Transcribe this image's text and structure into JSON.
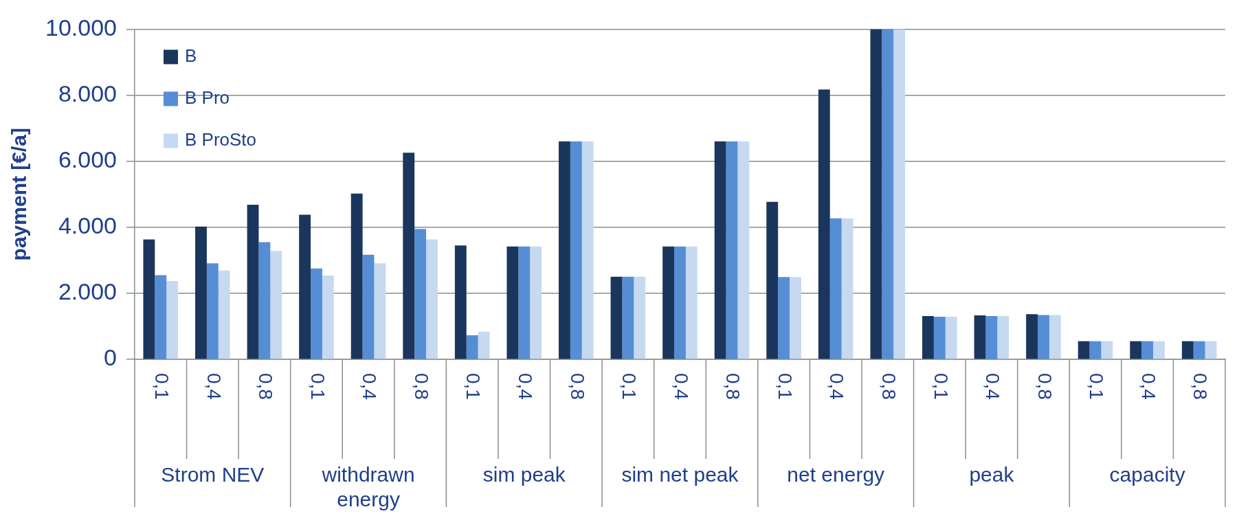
{
  "chart_data": {
    "type": "bar",
    "ylabel": "payment [€/a]",
    "categories": [
      "0,1",
      "0,4",
      "0,8",
      "0,1",
      "0,4",
      "0,8",
      "0,1",
      "0,4",
      "0,8",
      "0,1",
      "0,4",
      "0,8",
      "0,1",
      "0,4",
      "0,8",
      "0,1",
      "0,4",
      "0,8",
      "0,1",
      "0,4",
      "0,8"
    ],
    "annotations": [
      "Strom NEV",
      "withdrawn energy",
      "sim peak",
      "sim net peak",
      "net energy",
      "peak",
      "capacity"
    ],
    "series": [
      {
        "name": "B",
        "color": "#1b365d",
        "values": [
          3630,
          4020,
          4680,
          4380,
          5020,
          6260,
          3450,
          3420,
          6600,
          2500,
          3420,
          6600,
          4770,
          8170,
          10000,
          1310,
          1330,
          1370,
          550,
          550,
          550
        ]
      },
      {
        "name": "B Pro",
        "color": "#558ed5",
        "values": [
          2550,
          2910,
          3550,
          2750,
          3170,
          3950,
          730,
          3420,
          6600,
          2500,
          3420,
          6600,
          2490,
          4270,
          10000,
          1290,
          1310,
          1340,
          550,
          550,
          550
        ]
      },
      {
        "name": "B ProSto",
        "color": "#c6d9f1",
        "values": [
          2370,
          2690,
          3280,
          2540,
          2910,
          3630,
          840,
          3420,
          6600,
          2500,
          3420,
          6600,
          2490,
          4270,
          10000,
          1290,
          1310,
          1340,
          550,
          550,
          550
        ]
      }
    ],
    "ylim": [
      0,
      10000
    ],
    "yticks": [
      0,
      {
        "value": 2000,
        "label": "2.000"
      },
      {
        "value": 4000,
        "label": "4.000"
      },
      {
        "value": 6000,
        "label": "6.000"
      },
      {
        "value": 8000,
        "label": "8.000"
      },
      {
        "value": 10000,
        "label": "10.000"
      }
    ],
    "grid": "y",
    "legend": "top left"
  }
}
